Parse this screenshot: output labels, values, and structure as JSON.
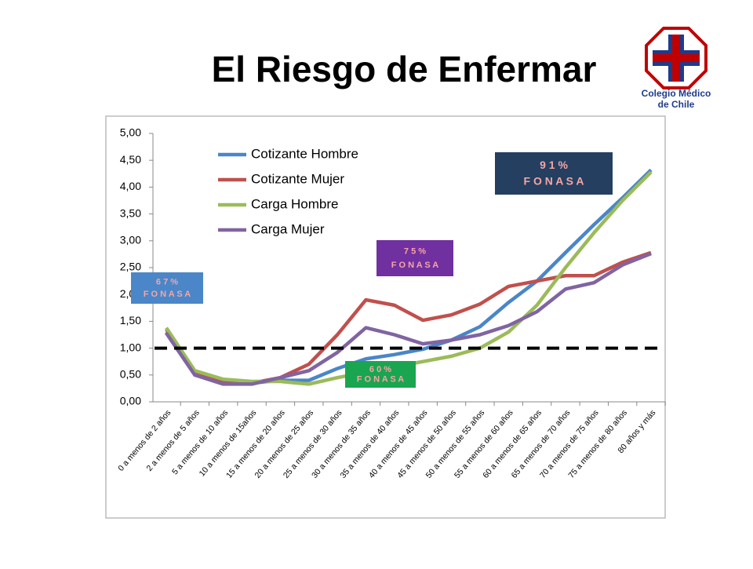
{
  "title": "El Riesgo de Enfermar",
  "logo": {
    "line1": "Colegio Médico",
    "line2": "de Chile"
  },
  "chart_data": {
    "type": "line",
    "categories": [
      "0 a menos de 2 años",
      "2 a menos de 5 años",
      "5 a menos de 10 años",
      "10 a menos de 15años",
      "15 a menos de 20 años",
      "20 a menos de 25 años",
      "25 a menos de 30 años",
      "30 a menos de 35 años",
      "35 a menos de 40 años",
      "40 a menos de 45 años",
      "45 a menos de 50 años",
      "50 a menos de 55 años",
      "55 a menos de 60 años",
      "60 a menos de 65 años",
      "65 a menos de 70 años",
      "70 a menos de 75 años",
      "75 a menos de 80 años",
      "80 años y más"
    ],
    "series": [
      {
        "name": "Cotizante  Hombre",
        "color": "#4a86c8",
        "values": [
          1.35,
          0.55,
          0.4,
          0.35,
          0.4,
          0.4,
          0.62,
          0.8,
          0.88,
          0.98,
          1.15,
          1.4,
          1.85,
          2.25,
          2.78,
          3.3,
          3.8,
          4.32
        ]
      },
      {
        "name": "Cotizante  Mujer",
        "color": "#c0504d",
        "values": [
          1.3,
          0.52,
          0.35,
          0.35,
          0.45,
          0.7,
          1.25,
          1.9,
          1.8,
          1.52,
          1.62,
          1.82,
          2.15,
          2.25,
          2.35,
          2.35,
          2.6,
          2.78
        ]
      },
      {
        "name": "Carga Hombre",
        "color": "#9bbb59",
        "values": [
          1.38,
          0.58,
          0.42,
          0.38,
          0.38,
          0.33,
          0.45,
          0.55,
          0.65,
          0.75,
          0.85,
          1.0,
          1.3,
          1.8,
          2.5,
          3.15,
          3.75,
          4.28
        ]
      },
      {
        "name": "Carga Mujer",
        "color": "#8064a2",
        "values": [
          1.28,
          0.5,
          0.33,
          0.33,
          0.45,
          0.58,
          0.92,
          1.38,
          1.25,
          1.08,
          1.15,
          1.25,
          1.42,
          1.68,
          2.1,
          2.22,
          2.55,
          2.76
        ]
      }
    ],
    "ylim": [
      0,
      5
    ],
    "yticks": [
      {
        "value": 0,
        "label": "0,00"
      },
      {
        "value": 0.5,
        "label": "0,50"
      },
      {
        "value": 1,
        "label": "1,00"
      },
      {
        "value": 1.5,
        "label": "1,50"
      },
      {
        "value": 2,
        "label": "2,00"
      },
      {
        "value": 2.5,
        "label": "2,50"
      },
      {
        "value": 3,
        "label": "3,00"
      },
      {
        "value": 3.5,
        "label": "3,50"
      },
      {
        "value": 4,
        "label": "4,00"
      },
      {
        "value": 4.5,
        "label": "4,50"
      },
      {
        "value": 5,
        "label": "5,00"
      }
    ],
    "reference_line": 1,
    "grid": false,
    "legend": "upper-left",
    "annotations": [
      {
        "line1": "6 7 %",
        "line2": "F O N A S A",
        "color": "#4a86c8"
      },
      {
        "line1": "6 0 %",
        "line2": "F O N A S A",
        "color": "#1aa550"
      },
      {
        "line1": "7 5 %",
        "line2": "F O N A S A",
        "color": "#7030a0"
      },
      {
        "line1": "9 1 %",
        "line2": "F O N A S A",
        "color": "#243f60"
      }
    ]
  }
}
